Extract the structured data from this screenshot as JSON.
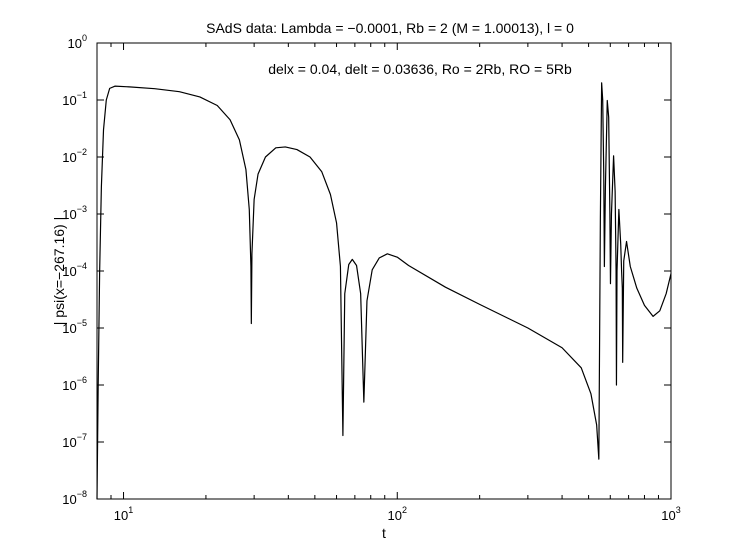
{
  "chart_data": {
    "type": "line",
    "title": "SAdS data: Lambda = −0.0001, Rb = 2 (M = 1.00013), l = 0",
    "annotation": "delx = 0.04, delt = 0.03636, Ro = 2Rb, RO = 5Rb",
    "xlabel": "t",
    "ylabel": "| psi(x=−267.16) |",
    "xscale": "log",
    "yscale": "log",
    "xlim": [
      8,
      1000
    ],
    "ylim": [
      1e-08,
      1
    ],
    "grid": false,
    "x_ticks": [
      {
        "value": 10,
        "base": "10",
        "exp": "1"
      },
      {
        "value": 100,
        "base": "10",
        "exp": "2"
      },
      {
        "value": 1000,
        "base": "10",
        "exp": "3"
      }
    ],
    "y_ticks": [
      {
        "value": 1e-08,
        "base": "10",
        "exp": "−8"
      },
      {
        "value": 1e-07,
        "base": "10",
        "exp": "−7"
      },
      {
        "value": 1e-06,
        "base": "10",
        "exp": "−6"
      },
      {
        "value": 1e-05,
        "base": "10",
        "exp": "−5"
      },
      {
        "value": 0.0001,
        "base": "10",
        "exp": "−4"
      },
      {
        "value": 0.001,
        "base": "10",
        "exp": "−3"
      },
      {
        "value": 0.01,
        "base": "10",
        "exp": "−2"
      },
      {
        "value": 0.1,
        "base": "10",
        "exp": "−1"
      },
      {
        "value": 1,
        "base": "10",
        "exp": "0"
      }
    ],
    "series": [
      {
        "color": "#000000",
        "points": [
          [
            8.0,
            1e-08
          ],
          [
            8.08,
            1e-06
          ],
          [
            8.18,
            0.0001
          ],
          [
            8.3,
            0.003
          ],
          [
            8.45,
            0.03
          ],
          [
            8.65,
            0.1
          ],
          [
            8.9,
            0.16
          ],
          [
            9.3,
            0.175
          ],
          [
            10.5,
            0.17
          ],
          [
            13,
            0.158
          ],
          [
            16,
            0.14
          ],
          [
            19,
            0.113
          ],
          [
            22,
            0.08
          ],
          [
            24.5,
            0.045
          ],
          [
            26.5,
            0.02
          ],
          [
            28,
            0.006
          ],
          [
            28.8,
            0.0012
          ],
          [
            29.2,
            0.00012
          ],
          [
            29.3,
            1.2e-05
          ],
          [
            29.45,
            0.0002
          ],
          [
            30,
            0.0018
          ],
          [
            31,
            0.005
          ],
          [
            33,
            0.01
          ],
          [
            36,
            0.0145
          ],
          [
            39,
            0.015
          ],
          [
            43,
            0.0135
          ],
          [
            48,
            0.01
          ],
          [
            53,
            0.0055
          ],
          [
            57,
            0.0022
          ],
          [
            60,
            0.0007
          ],
          [
            62,
            0.00012
          ],
          [
            63.3,
            1.3e-07
          ],
          [
            64.3,
            4e-05
          ],
          [
            66.5,
            0.00013
          ],
          [
            68.5,
            0.00016
          ],
          [
            71,
            0.000125
          ],
          [
            73.5,
            4e-05
          ],
          [
            75.5,
            5e-07
          ],
          [
            77.5,
            3e-05
          ],
          [
            81,
            0.000105
          ],
          [
            86,
            0.00017
          ],
          [
            92,
            0.0002
          ],
          [
            100,
            0.000175
          ],
          [
            110,
            0.000125
          ],
          [
            150,
            5.2e-05
          ],
          [
            200,
            2.6e-05
          ],
          [
            300,
            1e-05
          ],
          [
            400,
            4.5e-06
          ],
          [
            470,
            2e-06
          ],
          [
            510,
            7e-07
          ],
          [
            535,
            2e-07
          ],
          [
            545,
            5e-08
          ],
          [
            552,
            0.0008
          ],
          [
            558,
            0.2
          ],
          [
            563,
            0.1
          ],
          [
            568,
            0.005
          ],
          [
            571,
            0.00012
          ],
          [
            576,
            0.003
          ],
          [
            585,
            0.098
          ],
          [
            592,
            0.05
          ],
          [
            598,
            0.001
          ],
          [
            601,
            6e-05
          ],
          [
            606,
            0.001
          ],
          [
            617,
            0.0105
          ],
          [
            625,
            0.0025
          ],
          [
            630,
            0.0001
          ],
          [
            632,
            1e-06
          ],
          [
            635,
            0.0001
          ],
          [
            645,
            0.0012
          ],
          [
            655,
            0.0003
          ],
          [
            660,
            0.0001
          ],
          [
            664,
            5e-05
          ],
          [
            666,
            2.5e-06
          ],
          [
            672,
            0.00015
          ],
          [
            688,
            0.00033
          ],
          [
            710,
            0.00012
          ],
          [
            750,
            5e-05
          ],
          [
            800,
            2.5e-05
          ],
          [
            860,
            1.6e-05
          ],
          [
            910,
            2e-05
          ],
          [
            960,
            4e-05
          ],
          [
            1000,
            9e-05
          ]
        ]
      }
    ]
  }
}
